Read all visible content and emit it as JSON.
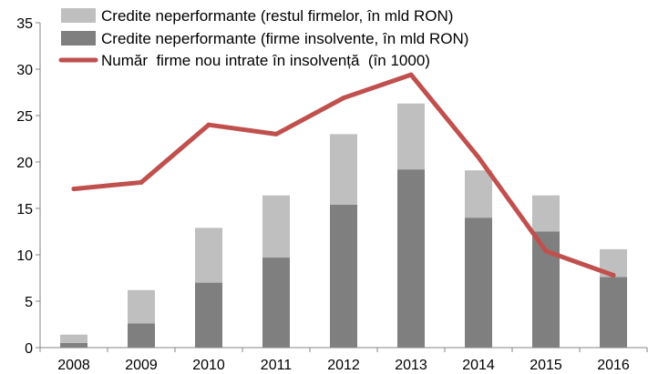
{
  "chart_data": {
    "type": "bar",
    "categories": [
      "2008",
      "2009",
      "2010",
      "2011",
      "2012",
      "2013",
      "2014",
      "2015",
      "2016"
    ],
    "ylim": [
      0,
      35
    ],
    "yticks": [
      "0",
      "5",
      "10",
      "15",
      "20",
      "25",
      "30",
      "35"
    ],
    "grid": false,
    "legend_position": "top-left",
    "series": [
      {
        "name": "Credite neperformante (firme insolvente, în mld RON)",
        "type": "bar",
        "stacked": true,
        "color": "#7f7f7f",
        "values": [
          0.5,
          2.6,
          7.0,
          9.7,
          15.4,
          19.2,
          14.0,
          12.5,
          7.6
        ]
      },
      {
        "name": "Credite neperformante (restul firmelor, în mld RON)",
        "type": "bar",
        "stacked": true,
        "color": "#bfbfbf",
        "values": [
          0.9,
          3.6,
          5.9,
          6.7,
          7.6,
          7.1,
          5.1,
          3.9,
          3.0
        ]
      },
      {
        "name": "Număr  firme nou intrate în insolvență  (în 1000)",
        "type": "line",
        "color": "#c0504d",
        "values": [
          17.1,
          17.8,
          24.0,
          23.0,
          26.9,
          29.4,
          20.5,
          10.4,
          7.8
        ]
      }
    ],
    "legend": [
      {
        "label": "Credite neperformante (restul firmelor, în mld RON)",
        "color": "#bfbfbf",
        "kind": "box"
      },
      {
        "label": "Credite neperformante (firme insolvente, în mld RON)",
        "color": "#7f7f7f",
        "kind": "box"
      },
      {
        "label": "Număr  firme nou intrate în insolvență  (în 1000)",
        "color": "#c0504d",
        "kind": "line"
      }
    ]
  }
}
